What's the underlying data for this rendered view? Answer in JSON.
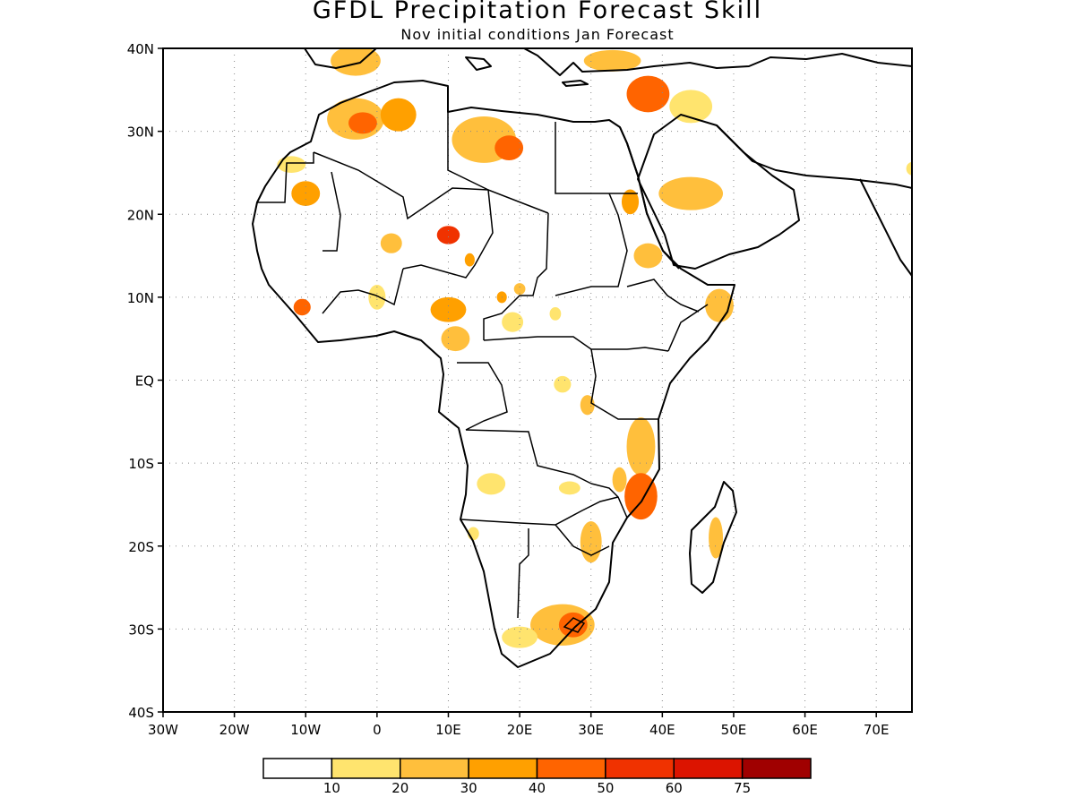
{
  "title": "GFDL Precipitation Forecast Skill",
  "subtitle": "Nov initial conditions  Jan Forecast",
  "map": {
    "lon_range": [
      -30,
      75
    ],
    "lat_range": [
      -40,
      40
    ],
    "lat_ticks": [
      {
        "value": 40,
        "label": "40N"
      },
      {
        "value": 30,
        "label": "30N"
      },
      {
        "value": 20,
        "label": "20N"
      },
      {
        "value": 10,
        "label": "10N"
      },
      {
        "value": 0,
        "label": "EQ"
      },
      {
        "value": -10,
        "label": "10S"
      },
      {
        "value": -20,
        "label": "20S"
      },
      {
        "value": -30,
        "label": "30S"
      },
      {
        "value": -40,
        "label": "40S"
      }
    ],
    "lon_ticks": [
      {
        "value": -30,
        "label": "30W"
      },
      {
        "value": -20,
        "label": "20W"
      },
      {
        "value": -10,
        "label": "10W"
      },
      {
        "value": 0,
        "label": "0"
      },
      {
        "value": 10,
        "label": "10E"
      },
      {
        "value": 20,
        "label": "20E"
      },
      {
        "value": 30,
        "label": "30E"
      },
      {
        "value": 40,
        "label": "40E"
      },
      {
        "value": 50,
        "label": "50E"
      },
      {
        "value": 60,
        "label": "60E"
      },
      {
        "value": 70,
        "label": "70E"
      }
    ],
    "grid": true
  },
  "colorbar": {
    "colors": [
      "#ffffff",
      "#ffe46e",
      "#ffbf3c",
      "#ffa000",
      "#ff6400",
      "#f03200",
      "#dc1400",
      "#a00000"
    ],
    "labels": [
      "10",
      "20",
      "30",
      "40",
      "50",
      "60",
      "75"
    ]
  },
  "skill_patches": [
    {
      "lon": -3,
      "lat": 38.5,
      "rx": 3.5,
      "ry": 1.8,
      "level": 2
    },
    {
      "lon": -3,
      "lat": 31.5,
      "rx": 4,
      "ry": 2.5,
      "level": 2
    },
    {
      "lon": -2,
      "lat": 31,
      "rx": 2,
      "ry": 1.3,
      "level": 4
    },
    {
      "lon": 3,
      "lat": 32,
      "rx": 2.5,
      "ry": 2,
      "level": 3
    },
    {
      "lon": 15,
      "lat": 29,
      "rx": 4.5,
      "ry": 2.8,
      "level": 2
    },
    {
      "lon": 18.5,
      "lat": 28,
      "rx": 2,
      "ry": 1.5,
      "level": 4
    },
    {
      "lon": 38,
      "lat": 34.5,
      "rx": 3,
      "ry": 2.2,
      "level": 4
    },
    {
      "lon": 33,
      "lat": 38.5,
      "rx": 4,
      "ry": 1.3,
      "level": 2
    },
    {
      "lon": 44,
      "lat": 33,
      "rx": 3,
      "ry": 2,
      "level": 1
    },
    {
      "lon": -10,
      "lat": 22.5,
      "rx": 2,
      "ry": 1.5,
      "level": 3
    },
    {
      "lon": -12,
      "lat": 26,
      "rx": 2,
      "ry": 1,
      "level": 1
    },
    {
      "lon": 10,
      "lat": 17.5,
      "rx": 1.6,
      "ry": 1.1,
      "level": 5
    },
    {
      "lon": 13,
      "lat": 14.5,
      "rx": 0.7,
      "ry": 0.8,
      "level": 3
    },
    {
      "lon": 2,
      "lat": 16.5,
      "rx": 1.5,
      "ry": 1.2,
      "level": 2
    },
    {
      "lon": 44,
      "lat": 22.5,
      "rx": 4.5,
      "ry": 2,
      "level": 2
    },
    {
      "lon": 35.5,
      "lat": 21.5,
      "rx": 1.2,
      "ry": 1.5,
      "level": 3
    },
    {
      "lon": 38,
      "lat": 15,
      "rx": 2,
      "ry": 1.5,
      "level": 2
    },
    {
      "lon": 10,
      "lat": 8.5,
      "rx": 2.5,
      "ry": 1.5,
      "level": 3
    },
    {
      "lon": 11,
      "lat": 5,
      "rx": 2,
      "ry": 1.5,
      "level": 2
    },
    {
      "lon": 19,
      "lat": 7,
      "rx": 1.5,
      "ry": 1.2,
      "level": 1
    },
    {
      "lon": 17.5,
      "lat": 10,
      "rx": 0.7,
      "ry": 0.7,
      "level": 3
    },
    {
      "lon": 20,
      "lat": 11,
      "rx": 0.8,
      "ry": 0.7,
      "level": 2
    },
    {
      "lon": 25,
      "lat": 8,
      "rx": 0.8,
      "ry": 0.8,
      "level": 1
    },
    {
      "lon": -10.5,
      "lat": 8.8,
      "rx": 1.2,
      "ry": 1,
      "level": 4
    },
    {
      "lon": 0,
      "lat": 10,
      "rx": 1.2,
      "ry": 1.5,
      "level": 1
    },
    {
      "lon": 48,
      "lat": 9,
      "rx": 2,
      "ry": 2,
      "level": 2
    },
    {
      "lon": 26,
      "lat": -0.5,
      "rx": 1.2,
      "ry": 1,
      "level": 1
    },
    {
      "lon": 29.5,
      "lat": -3,
      "rx": 1,
      "ry": 1.2,
      "level": 2
    },
    {
      "lon": 37,
      "lat": -8,
      "rx": 2,
      "ry": 3.5,
      "level": 2
    },
    {
      "lon": 37,
      "lat": -14,
      "rx": 2.3,
      "ry": 2.8,
      "level": 4
    },
    {
      "lon": 34,
      "lat": -12,
      "rx": 1,
      "ry": 1.5,
      "level": 2
    },
    {
      "lon": 16,
      "lat": -12.5,
      "rx": 2,
      "ry": 1.3,
      "level": 1
    },
    {
      "lon": 27,
      "lat": -13,
      "rx": 1.5,
      "ry": 0.8,
      "level": 1
    },
    {
      "lon": 30,
      "lat": -19.5,
      "rx": 1.5,
      "ry": 2.5,
      "level": 2
    },
    {
      "lon": 13.5,
      "lat": -18.5,
      "rx": 0.8,
      "ry": 0.8,
      "level": 1
    },
    {
      "lon": 47.5,
      "lat": -19,
      "rx": 1,
      "ry": 2.5,
      "level": 2
    },
    {
      "lon": 26,
      "lat": -29.5,
      "rx": 4.5,
      "ry": 2.5,
      "level": 2
    },
    {
      "lon": 27.5,
      "lat": -29.5,
      "rx": 2,
      "ry": 1.5,
      "level": 4
    },
    {
      "lon": 20,
      "lat": -31,
      "rx": 2.5,
      "ry": 1.3,
      "level": 1
    },
    {
      "lon": 75,
      "lat": 25.5,
      "rx": 0.8,
      "ry": 0.8,
      "level": 1
    }
  ]
}
